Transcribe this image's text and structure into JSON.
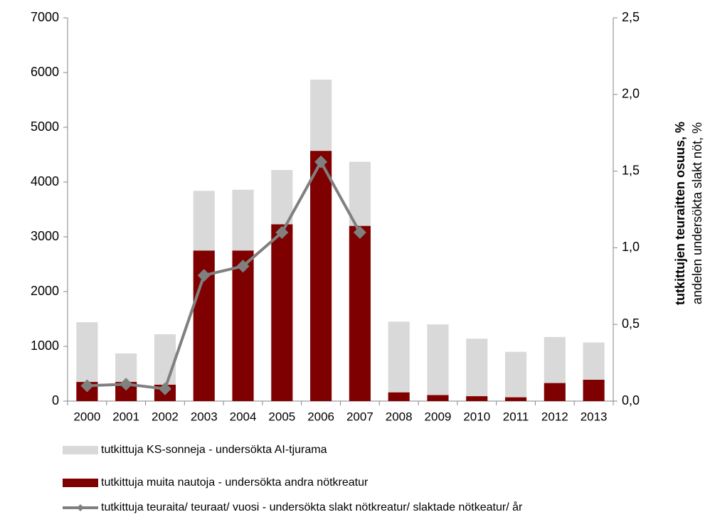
{
  "chart_data": {
    "type": "bar",
    "categories": [
      "2000",
      "2001",
      "2002",
      "2003",
      "2004",
      "2005",
      "2006",
      "2007",
      "2008",
      "2009",
      "2010",
      "2011",
      "2012",
      "2013"
    ],
    "series": [
      {
        "name": "tutkittuja KS-sonneja - undersökta AI-tjurama",
        "type": "bar",
        "color": "#d9d9d9",
        "values": [
          1090,
          520,
          920,
          1090,
          1110,
          990,
          1300,
          1170,
          1290,
          1290,
          1050,
          830,
          840,
          680
        ]
      },
      {
        "name": "tutkittuja muita nautoja - undersökta andra nötkreatur",
        "type": "bar",
        "color": "#7f0000",
        "values": [
          350,
          350,
          300,
          2750,
          2750,
          3230,
          4570,
          3200,
          160,
          110,
          90,
          70,
          330,
          390
        ]
      },
      {
        "name": "tutkittuja teuraita/ teuraat/ vuosi - undersökta slakt nötkreatur/ slaktade nötkeatur/ år",
        "type": "line",
        "axis": "y2",
        "color": "#808080",
        "values": [
          0.1,
          0.11,
          0.08,
          0.82,
          0.88,
          1.1,
          1.56,
          1.1,
          null,
          null,
          null,
          null,
          null,
          null
        ]
      }
    ],
    "y2label": [
      "tutkittujen teuraitten osuus, %",
      "andelen undersökta slakt nöt, %"
    ],
    "ylim": [
      0,
      7000
    ],
    "yticks": [
      0,
      1000,
      2000,
      3000,
      4000,
      5000,
      6000,
      7000
    ],
    "y2lim": [
      0,
      2.5
    ],
    "y2ticks": [
      {
        "value": 0,
        "label": "0,0"
      },
      {
        "value": 0.5,
        "label": "0,5"
      },
      {
        "value": 1.0,
        "label": "1,0"
      },
      {
        "value": 1.5,
        "label": "1,5"
      },
      {
        "value": 2.0,
        "label": "2,0"
      },
      {
        "value": 2.5,
        "label": "2,5"
      }
    ],
    "legend": "bottom"
  }
}
